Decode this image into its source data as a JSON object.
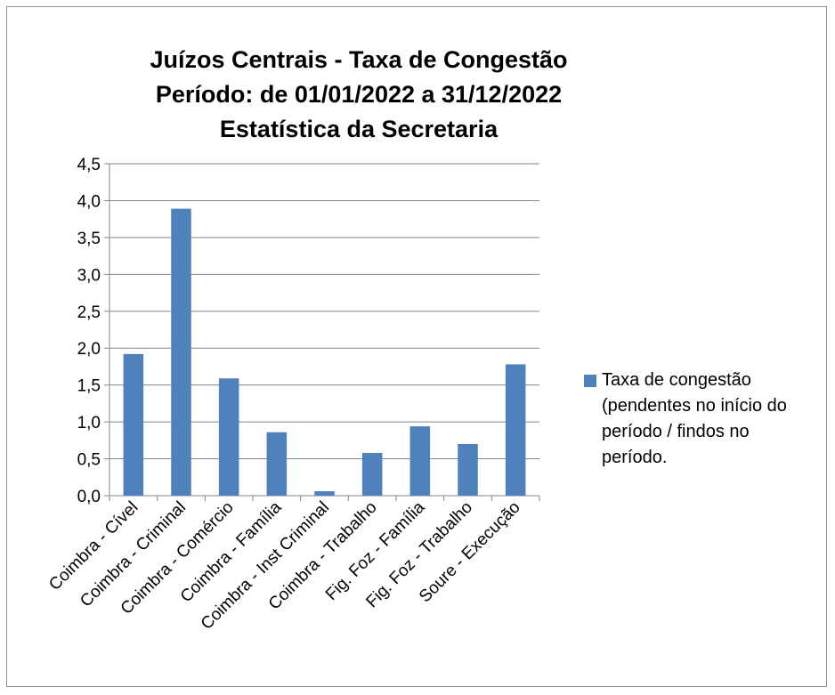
{
  "chart_data": {
    "type": "bar",
    "title_lines": [
      "Juízos Centrais - Taxa de Congestão",
      "Período: de 01/01/2022 a 31/12/2022",
      "Estatística da Secretaria"
    ],
    "categories": [
      "Coimbra - Cível",
      "Coimbra - Criminal",
      "Coimbra - Comércio",
      "Coimbra - Família",
      "Coimbra - Inst Criminal",
      "Coimbra - Trabalho",
      "Fig. Foz - Família",
      "Fig. Foz - Trabalho",
      "Soure - Execução"
    ],
    "series": [
      {
        "name": "Taxa de congestão (pendentes no início do período / findos no período.",
        "values": [
          1.92,
          3.89,
          1.59,
          0.86,
          0.06,
          0.58,
          0.94,
          0.7,
          1.78
        ],
        "color": "#4f81bd"
      }
    ],
    "yticks": [
      "0,0",
      "0,5",
      "1,0",
      "1,5",
      "2,0",
      "2,5",
      "3,0",
      "3,5",
      "4,0",
      "4,5"
    ],
    "ylim": [
      0,
      4.5
    ],
    "grid": true,
    "legend_position": "right"
  }
}
